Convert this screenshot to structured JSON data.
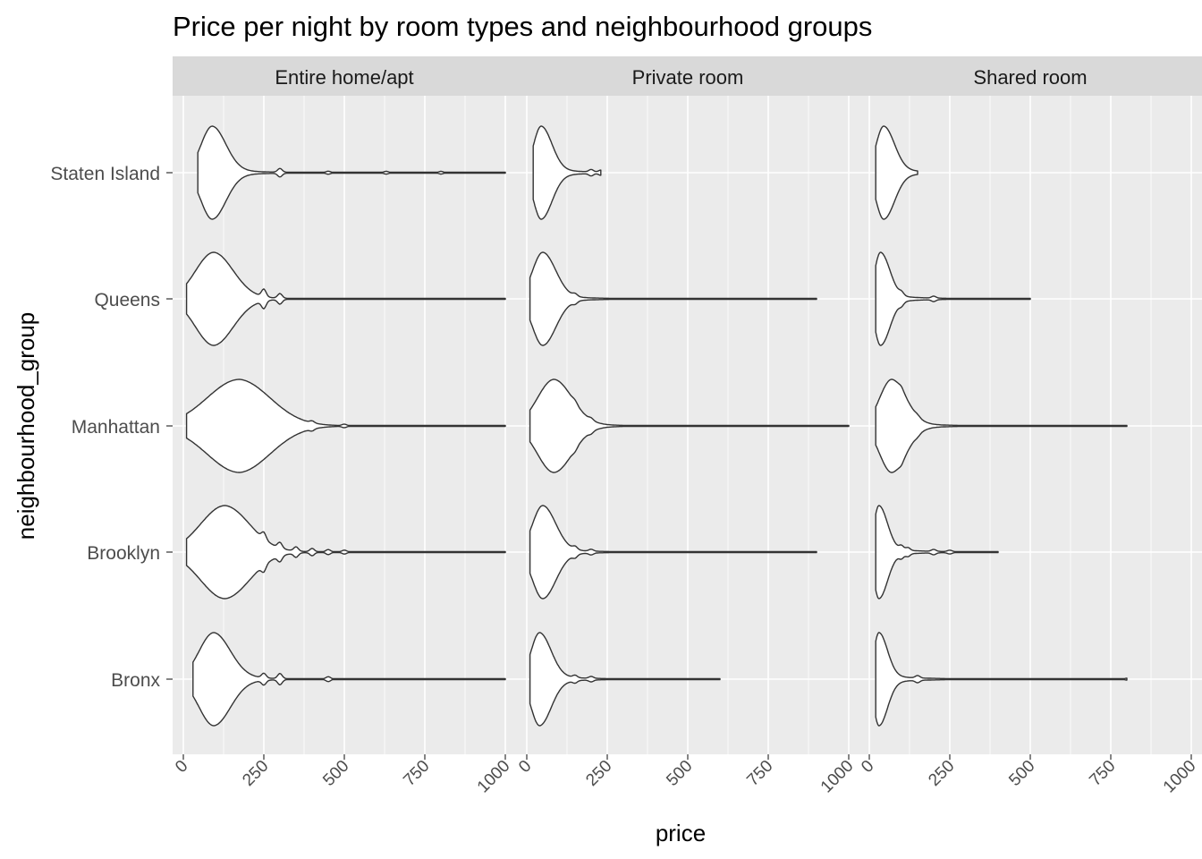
{
  "chart_data": {
    "type": "violin",
    "title": "Price per night by room types and neighbourhood groups",
    "xlabel": "price",
    "ylabel": "neighbourhood_group",
    "xlim": [
      0,
      1000
    ],
    "x_ticks": [
      "0",
      "250",
      "500",
      "750",
      "1000"
    ],
    "x_tick_values": [
      0,
      250,
      500,
      750,
      1000
    ],
    "categories": [
      "Bronx",
      "Brooklyn",
      "Manhattan",
      "Queens",
      "Staten Island"
    ],
    "facets": [
      "Entire home/apt",
      "Private room",
      "Shared room"
    ],
    "grid": true,
    "legend": "none",
    "colors": {
      "panel_background": "#ebebeb",
      "strip_background": "#d9d9d9",
      "grid_line": "#ffffff",
      "violin_fill": "#ffffff",
      "violin_stroke": "#333333"
    },
    "panels": [
      {
        "facet": "Entire home/apt",
        "violins": [
          {
            "category": "Bronx",
            "min": 30,
            "max": 1000,
            "mode": 95,
            "ridges": [
              {
                "x": 250,
                "w": 0.1
              },
              {
                "x": 300,
                "w": 0.11
              },
              {
                "x": 450,
                "w": 0.05
              }
            ]
          },
          {
            "category": "Brooklyn",
            "min": 10,
            "max": 1000,
            "mode": 130,
            "ridges": [
              {
                "x": 250,
                "w": 0.14
              },
              {
                "x": 300,
                "w": 0.12
              },
              {
                "x": 350,
                "w": 0.09
              },
              {
                "x": 400,
                "w": 0.07
              },
              {
                "x": 450,
                "w": 0.05
              },
              {
                "x": 500,
                "w": 0.04
              }
            ]
          },
          {
            "category": "Manhattan",
            "min": 10,
            "max": 1000,
            "mode": 175,
            "ridges": [
              {
                "x": 400,
                "w": 0.04
              },
              {
                "x": 500,
                "w": 0.03
              }
            ]
          },
          {
            "category": "Queens",
            "min": 10,
            "max": 1000,
            "mode": 95,
            "ridges": [
              {
                "x": 250,
                "w": 0.16
              },
              {
                "x": 300,
                "w": 0.1
              }
            ]
          },
          {
            "category": "Staten Island",
            "min": 45,
            "max": 1000,
            "mode": 90,
            "ridges": [
              {
                "x": 300,
                "w": 0.08
              },
              {
                "x": 450,
                "w": 0.03
              },
              {
                "x": 630,
                "w": 0.03
              },
              {
                "x": 800,
                "w": 0.03
              }
            ]
          }
        ]
      },
      {
        "facet": "Private room",
        "violins": [
          {
            "category": "Bronx",
            "min": 10,
            "max": 600,
            "mode": 40,
            "ridges": [
              {
                "x": 150,
                "w": 0.05
              },
              {
                "x": 200,
                "w": 0.04
              }
            ]
          },
          {
            "category": "Brooklyn",
            "min": 10,
            "max": 900,
            "mode": 50,
            "ridges": [
              {
                "x": 150,
                "w": 0.06
              },
              {
                "x": 200,
                "w": 0.04
              }
            ]
          },
          {
            "category": "Manhattan",
            "min": 10,
            "max": 1000,
            "mode": 85,
            "ridges": [
              {
                "x": 150,
                "w": 0.05
              },
              {
                "x": 200,
                "w": 0.04
              }
            ]
          },
          {
            "category": "Queens",
            "min": 10,
            "max": 900,
            "mode": 50,
            "ridges": [
              {
                "x": 150,
                "w": 0.05
              }
            ]
          },
          {
            "category": "Staten Island",
            "min": 20,
            "max": 230,
            "mode": 45,
            "ridges": [
              {
                "x": 200,
                "w": 0.05
              },
              {
                "x": 230,
                "w": 0.04
              }
            ]
          }
        ]
      },
      {
        "facet": "Shared room",
        "violins": [
          {
            "category": "Bronx",
            "min": 20,
            "max": 800,
            "mode": 30,
            "ridges": [
              {
                "x": 150,
                "w": 0.05
              },
              {
                "x": 800,
                "w": 0.02
              }
            ]
          },
          {
            "category": "Brooklyn",
            "min": 20,
            "max": 400,
            "mode": 30,
            "ridges": [
              {
                "x": 100,
                "w": 0.08
              },
              {
                "x": 120,
                "w": 0.06
              },
              {
                "x": 200,
                "w": 0.04
              },
              {
                "x": 250,
                "w": 0.03
              }
            ]
          },
          {
            "category": "Manhattan",
            "min": 20,
            "max": 800,
            "mode": 70,
            "ridges": [
              {
                "x": 100,
                "w": 0.05
              },
              {
                "x": 150,
                "w": 0.03
              }
            ]
          },
          {
            "category": "Queens",
            "min": 20,
            "max": 500,
            "mode": 35,
            "ridges": [
              {
                "x": 100,
                "w": 0.06
              },
              {
                "x": 200,
                "w": 0.04
              }
            ]
          },
          {
            "category": "Staten Island",
            "min": 20,
            "max": 150,
            "mode": 45,
            "ridges": []
          }
        ]
      }
    ]
  }
}
